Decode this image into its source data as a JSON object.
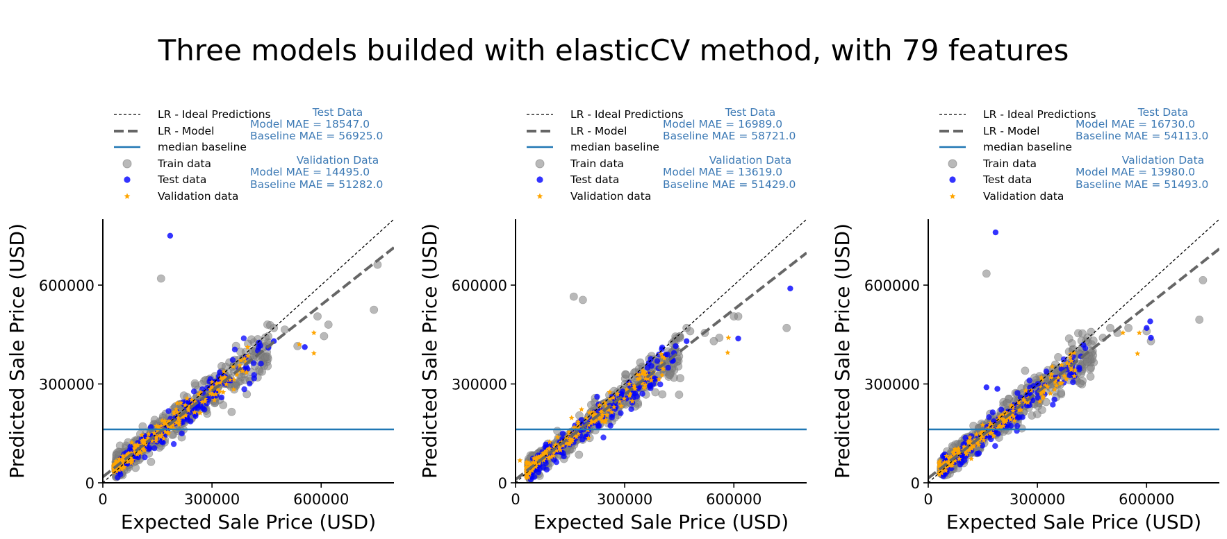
{
  "suptitle": "Three models builded with elasticCV method, with 79 features",
  "colors": {
    "ideal": "#000000",
    "model": "#666666",
    "baseline": "#1f77b4",
    "train": "#808080",
    "test": "#0000ff",
    "validation": "#ffa500",
    "mae_text": "#3d7ab5"
  },
  "legend_labels": [
    "LR - Ideal Predictions",
    "LR - Model",
    "median baseline",
    "Train data",
    "Test data",
    "Validation data"
  ],
  "chart_data": [
    {
      "type": "scatter",
      "xlabel": "Expected Sale Price (USD)",
      "ylabel": "Predicted Sale Price (USD)",
      "xlim": [
        0,
        800000
      ],
      "ylim": [
        0,
        800000
      ],
      "xticks": [
        "0",
        "300000",
        "600000"
      ],
      "yticks": [
        "0",
        "300000",
        "600000"
      ],
      "legend": "top-left (above axes)",
      "grid": false,
      "baseline_y": 162000,
      "model_line": {
        "slope": 0.87,
        "intercept": 18000
      },
      "metrics": {
        "test_title": "Test Data",
        "test_model": "Model MAE    = 18547.0",
        "test_baseline": "Baseline MAE = 56925.0",
        "val_title": "Validation Data",
        "val_model": "Model MAE    = 14495.0",
        "val_baseline": "Baseline MAE = 51282.0"
      },
      "outliers": {
        "train": [
          [
            160000,
            620000
          ],
          [
            745000,
            525000
          ],
          [
            755000,
            662000
          ],
          [
            620000,
            480000
          ],
          [
            608000,
            445000
          ],
          [
            590000,
            505000
          ],
          [
            535000,
            415000
          ],
          [
            470000,
            470000
          ],
          [
            460000,
            478000
          ],
          [
            500000,
            465000
          ]
        ],
        "test": [
          [
            185000,
            750000
          ],
          [
            555000,
            412000
          ],
          [
            470000,
            430000
          ],
          [
            455000,
            410000
          ]
        ],
        "validation": [
          [
            580000,
            455000
          ],
          [
            580000,
            393000
          ],
          [
            540000,
            420000
          ]
        ]
      }
    },
    {
      "type": "scatter",
      "xlabel": "Expected Sale Price (USD)",
      "ylabel": "Predicted Sale Price (USD)",
      "xlim": [
        0,
        800000
      ],
      "ylim": [
        0,
        800000
      ],
      "xticks": [
        "0",
        "300000",
        "600000"
      ],
      "yticks": [
        "0",
        "300000",
        "600000"
      ],
      "legend": "top-left (above axes)",
      "grid": false,
      "baseline_y": 162000,
      "model_line": {
        "slope": 0.86,
        "intercept": 10000
      },
      "metrics": {
        "test_title": "Test Data",
        "test_model": "Model MAE    = 16989.0",
        "test_baseline": "Baseline MAE = 58721.0",
        "val_title": "Validation Data",
        "val_model": "Model MAE    = 13619.0",
        "val_baseline": "Baseline MAE = 51429.0"
      },
      "outliers": {
        "train": [
          [
            160000,
            565000
          ],
          [
            185000,
            555000
          ],
          [
            745000,
            470000
          ],
          [
            600000,
            505000
          ],
          [
            612000,
            505000
          ],
          [
            560000,
            440000
          ],
          [
            545000,
            430000
          ],
          [
            470000,
            470000
          ],
          [
            480000,
            460000
          ],
          [
            520000,
            455000
          ]
        ],
        "test": [
          [
            755000,
            590000
          ],
          [
            612000,
            438000
          ],
          [
            470000,
            430000
          ],
          [
            440000,
            415000
          ]
        ],
        "validation": [
          [
            585000,
            440000
          ],
          [
            583000,
            395000
          ],
          [
            12000,
            68000
          ]
        ]
      }
    },
    {
      "type": "scatter",
      "xlabel": "Expected Sale Price (USD)",
      "ylabel": "Predicted Sale Price (USD)",
      "xlim": [
        0,
        800000
      ],
      "ylim": [
        0,
        800000
      ],
      "xticks": [
        "0",
        "300000",
        "600000"
      ],
      "yticks": [
        "0",
        "300000",
        "600000"
      ],
      "legend": "top-left (above axes)",
      "grid": false,
      "baseline_y": 162000,
      "model_line": {
        "slope": 0.87,
        "intercept": 14000
      },
      "metrics": {
        "test_title": "Test Data",
        "test_model": "Model MAE    = 16730.0",
        "test_baseline": "Baseline MAE = 54113.0",
        "val_title": "Validation Data",
        "val_model": "Model MAE    = 13980.0",
        "val_baseline": "Baseline MAE = 51493.0"
      },
      "outliers": {
        "train": [
          [
            160000,
            635000
          ],
          [
            745000,
            495000
          ],
          [
            755000,
            615000
          ],
          [
            612000,
            430000
          ],
          [
            600000,
            460000
          ],
          [
            550000,
            470000
          ],
          [
            520000,
            455000
          ],
          [
            480000,
            440000
          ],
          [
            500000,
            470000
          ]
        ],
        "test": [
          [
            185000,
            760000
          ],
          [
            610000,
            490000
          ],
          [
            612000,
            440000
          ],
          [
            600000,
            470000
          ],
          [
            160000,
            290000
          ],
          [
            190000,
            285000
          ]
        ],
        "validation": [
          [
            580000,
            455000
          ],
          [
            575000,
            392000
          ],
          [
            535000,
            455000
          ]
        ]
      }
    }
  ]
}
